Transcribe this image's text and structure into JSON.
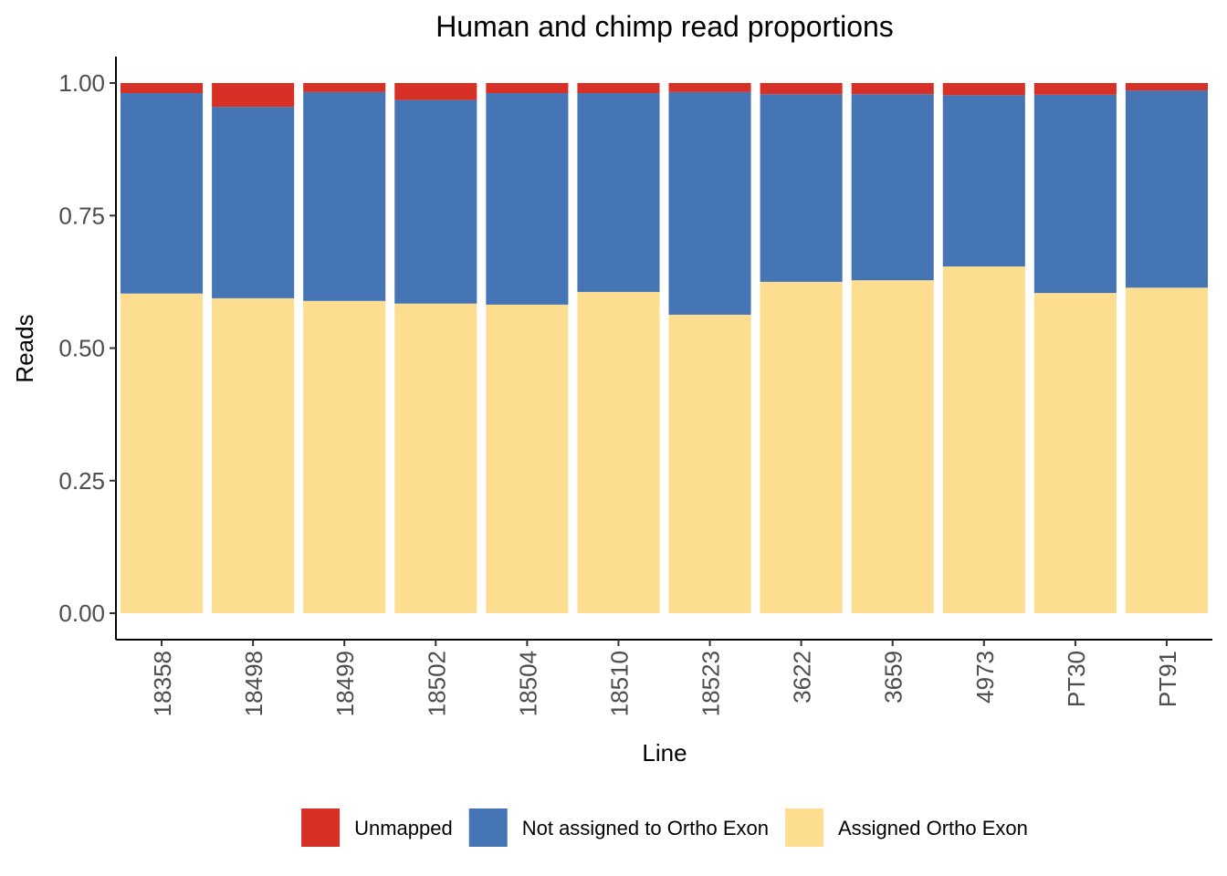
{
  "chart_data": {
    "type": "bar",
    "stacked": true,
    "title": "Human and chimp read proportions",
    "xlabel": "Line",
    "ylabel": "Reads",
    "ylim": [
      0,
      1
    ],
    "yticks": [
      "0.00",
      "0.25",
      "0.50",
      "0.75",
      "1.00"
    ],
    "ytick_values": [
      0,
      0.25,
      0.5,
      0.75,
      1.0
    ],
    "grid": false,
    "legend_position": "bottom",
    "categories": [
      "18358",
      "18498",
      "18499",
      "18502",
      "18504",
      "18510",
      "18523",
      "3622",
      "3659",
      "4973",
      "PT30",
      "PT91"
    ],
    "series": [
      {
        "name": "Assigned Ortho Exon",
        "color": "#FDDE90",
        "values": [
          0.603,
          0.594,
          0.589,
          0.584,
          0.582,
          0.606,
          0.563,
          0.625,
          0.628,
          0.654,
          0.604,
          0.614
        ]
      },
      {
        "name": "Not assigned to Ortho Exon",
        "color": "#4575B4",
        "values": [
          0.378,
          0.361,
          0.394,
          0.384,
          0.399,
          0.375,
          0.42,
          0.354,
          0.351,
          0.323,
          0.374,
          0.372
        ]
      },
      {
        "name": "Unmapped",
        "color": "#D73027",
        "values": [
          0.019,
          0.045,
          0.017,
          0.032,
          0.019,
          0.019,
          0.017,
          0.021,
          0.021,
          0.023,
          0.022,
          0.014
        ]
      }
    ],
    "legend_order": [
      "Unmapped",
      "Not assigned to Ortho Exon",
      "Assigned Ortho Exon"
    ]
  }
}
